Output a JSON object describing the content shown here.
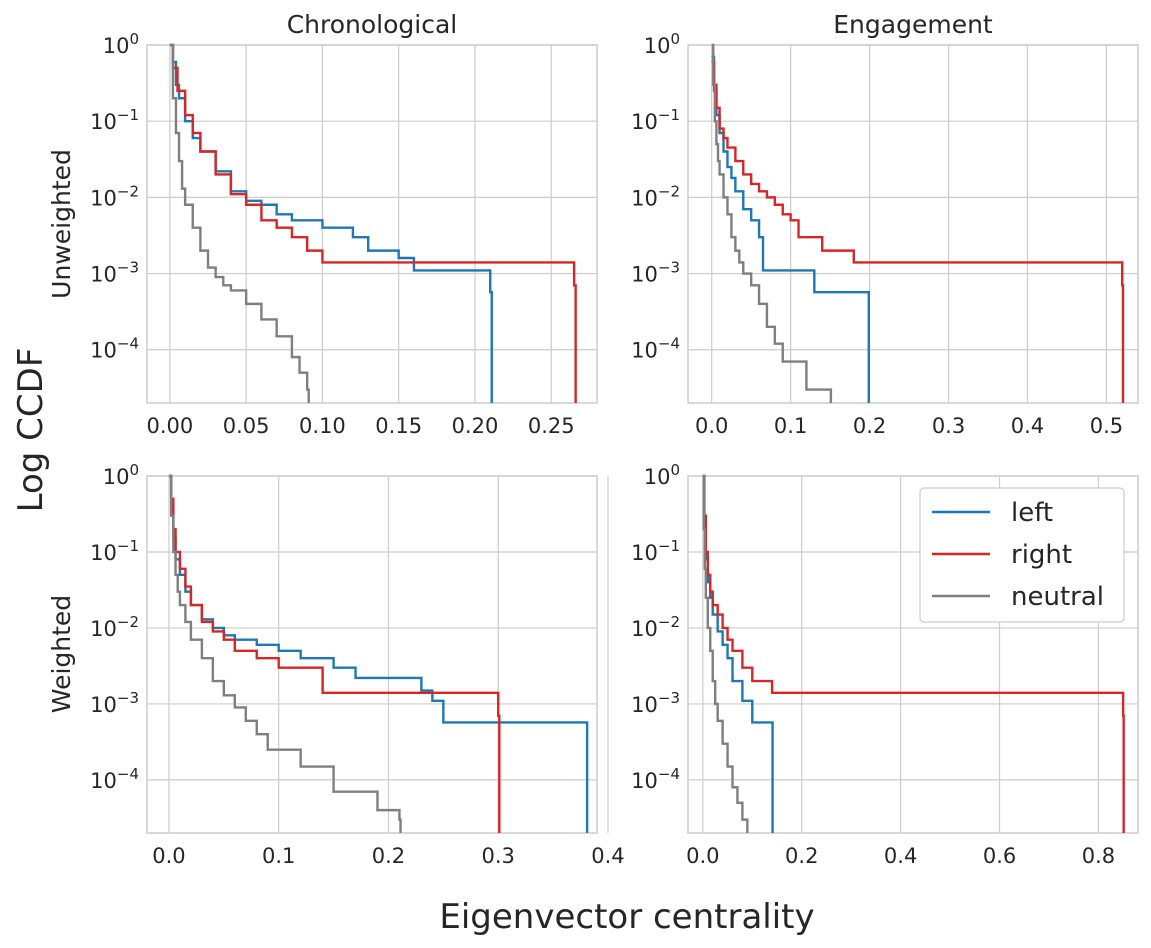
{
  "figure": {
    "ylabel": "Log CCDF",
    "xlabel": "Eigenvector centrality",
    "column_titles": [
      "Chronological",
      "Engagement"
    ],
    "row_labels": [
      "Unweighted",
      "Weighted"
    ],
    "legend": [
      {
        "label": "left",
        "color": "#1f77b4"
      },
      {
        "label": "right",
        "color": "#d62728"
      },
      {
        "label": "neutral",
        "color": "#7f7f7f"
      }
    ],
    "y_tick_labels": [
      {
        "base": "10",
        "exp": "0"
      },
      {
        "base": "10",
        "exp": "−1"
      },
      {
        "base": "10",
        "exp": "−2"
      },
      {
        "base": "10",
        "exp": "−3"
      },
      {
        "base": "10",
        "exp": "−4"
      }
    ]
  },
  "chart_data": [
    {
      "type": "line",
      "step": true,
      "yscale": "log",
      "row": "Unweighted",
      "column": "Chronological",
      "title": "Chronological",
      "xlim": [
        -0.015,
        0.28
      ],
      "ylim": [
        2e-05,
        1
      ],
      "xticks": [
        0,
        0.05,
        0.1,
        0.15,
        0.2,
        0.25
      ],
      "xtick_labels": [
        "0.00",
        "0.05",
        "0.10",
        "0.15",
        "0.20",
        "0.25"
      ],
      "series": [
        {
          "name": "left",
          "x": [
            0,
            0.002,
            0.004,
            0.006,
            0.01,
            0.015,
            0.02,
            0.03,
            0.04,
            0.05,
            0.06,
            0.07,
            0.08,
            0.1,
            0.12,
            0.13,
            0.15,
            0.16,
            0.21,
            0.211
          ],
          "y": [
            1,
            0.6,
            0.3,
            0.2,
            0.1,
            0.06,
            0.04,
            0.022,
            0.012,
            0.009,
            0.008,
            0.006,
            0.005,
            0.004,
            0.003,
            0.002,
            0.0016,
            0.0011,
            0.00057,
            2e-05
          ]
        },
        {
          "name": "right",
          "x": [
            0,
            0.002,
            0.005,
            0.01,
            0.015,
            0.02,
            0.03,
            0.04,
            0.05,
            0.06,
            0.07,
            0.08,
            0.09,
            0.1,
            0.265,
            0.266
          ],
          "y": [
            1,
            0.5,
            0.25,
            0.12,
            0.07,
            0.04,
            0.02,
            0.011,
            0.008,
            0.005,
            0.004,
            0.003,
            0.002,
            0.0014,
            0.0007,
            2e-05
          ]
        },
        {
          "name": "neutral",
          "x": [
            0,
            0.002,
            0.004,
            0.006,
            0.008,
            0.01,
            0.015,
            0.02,
            0.025,
            0.03,
            0.035,
            0.04,
            0.05,
            0.06,
            0.07,
            0.08,
            0.085,
            0.09,
            0.091
          ],
          "y": [
            1,
            0.2,
            0.07,
            0.03,
            0.013,
            0.008,
            0.004,
            0.002,
            0.0012,
            0.0009,
            0.0007,
            0.0006,
            0.0004,
            0.00025,
            0.00015,
            8e-05,
            5e-05,
            3e-05,
            2e-05
          ]
        }
      ]
    },
    {
      "type": "line",
      "step": true,
      "yscale": "log",
      "row": "Unweighted",
      "column": "Engagement",
      "title": "Engagement",
      "xlim": [
        -0.03,
        0.54
      ],
      "ylim": [
        2e-05,
        1
      ],
      "xticks": [
        0,
        0.1,
        0.2,
        0.3,
        0.4,
        0.5
      ],
      "xtick_labels": [
        "0.0",
        "0.1",
        "0.2",
        "0.3",
        "0.4",
        "0.5"
      ],
      "series": [
        {
          "name": "left",
          "x": [
            0,
            0.003,
            0.006,
            0.01,
            0.015,
            0.02,
            0.025,
            0.03,
            0.04,
            0.05,
            0.06,
            0.065,
            0.13,
            0.198,
            0.199
          ],
          "y": [
            0.7,
            0.25,
            0.12,
            0.07,
            0.04,
            0.025,
            0.018,
            0.012,
            0.007,
            0.005,
            0.003,
            0.0011,
            0.00057,
            0.00057,
            2e-05
          ]
        },
        {
          "name": "right",
          "x": [
            0,
            0.003,
            0.006,
            0.01,
            0.015,
            0.02,
            0.03,
            0.04,
            0.05,
            0.06,
            0.07,
            0.08,
            0.09,
            0.1,
            0.11,
            0.14,
            0.18,
            0.52,
            0.521
          ],
          "y": [
            0.6,
            0.3,
            0.15,
            0.08,
            0.06,
            0.045,
            0.03,
            0.02,
            0.015,
            0.012,
            0.01,
            0.008,
            0.006,
            0.005,
            0.003,
            0.002,
            0.0014,
            0.0007,
            2e-05
          ]
        },
        {
          "name": "neutral",
          "x": [
            0,
            0.002,
            0.004,
            0.006,
            0.008,
            0.01,
            0.015,
            0.02,
            0.025,
            0.03,
            0.035,
            0.04,
            0.05,
            0.06,
            0.07,
            0.08,
            0.09,
            0.12,
            0.15,
            0.151
          ],
          "y": [
            1,
            0.3,
            0.1,
            0.05,
            0.03,
            0.02,
            0.01,
            0.006,
            0.003,
            0.002,
            0.0014,
            0.001,
            0.0007,
            0.0004,
            0.0002,
            0.00012,
            7e-05,
            3e-05,
            3e-05,
            2e-05
          ]
        }
      ]
    },
    {
      "type": "line",
      "step": true,
      "yscale": "log",
      "row": "Weighted",
      "column": "Chronological",
      "title": "",
      "xlim": [
        -0.02,
        0.39
      ],
      "ylim": [
        2e-05,
        1
      ],
      "xticks": [
        0,
        0.1,
        0.2,
        0.3,
        0.4
      ],
      "xtick_labels": [
        "0.0",
        "0.1",
        "0.2",
        "0.3",
        "0.4"
      ],
      "series": [
        {
          "name": "left",
          "x": [
            0,
            0.002,
            0.004,
            0.006,
            0.01,
            0.015,
            0.02,
            0.03,
            0.04,
            0.05,
            0.06,
            0.08,
            0.1,
            0.12,
            0.15,
            0.17,
            0.23,
            0.24,
            0.25,
            0.38,
            0.381
          ],
          "y": [
            1,
            0.4,
            0.15,
            0.08,
            0.05,
            0.03,
            0.02,
            0.013,
            0.01,
            0.008,
            0.007,
            0.006,
            0.005,
            0.004,
            0.003,
            0.0022,
            0.0015,
            0.0011,
            0.00057,
            0.00057,
            2e-05
          ]
        },
        {
          "name": "right",
          "x": [
            0,
            0.002,
            0.004,
            0.006,
            0.01,
            0.015,
            0.02,
            0.03,
            0.04,
            0.05,
            0.06,
            0.08,
            0.1,
            0.14,
            0.3,
            0.301
          ],
          "y": [
            1,
            0.5,
            0.2,
            0.1,
            0.06,
            0.035,
            0.02,
            0.012,
            0.009,
            0.007,
            0.005,
            0.004,
            0.003,
            0.0014,
            0.0007,
            2e-05
          ]
        },
        {
          "name": "neutral",
          "x": [
            0,
            0.002,
            0.004,
            0.006,
            0.008,
            0.01,
            0.015,
            0.02,
            0.03,
            0.04,
            0.05,
            0.06,
            0.07,
            0.08,
            0.09,
            0.12,
            0.15,
            0.19,
            0.21,
            0.211
          ],
          "y": [
            1,
            0.3,
            0.1,
            0.05,
            0.03,
            0.02,
            0.012,
            0.007,
            0.004,
            0.002,
            0.0013,
            0.0009,
            0.0006,
            0.0004,
            0.00025,
            0.00015,
            7e-05,
            4e-05,
            3e-05,
            2e-05
          ]
        }
      ]
    },
    {
      "type": "line",
      "step": true,
      "yscale": "log",
      "row": "Weighted",
      "column": "Engagement",
      "title": "",
      "xlim": [
        -0.03,
        0.88
      ],
      "ylim": [
        2e-05,
        1
      ],
      "xticks": [
        0,
        0.2,
        0.4,
        0.6,
        0.8
      ],
      "xtick_labels": [
        "0.0",
        "0.2",
        "0.4",
        "0.6",
        "0.8"
      ],
      "series": [
        {
          "name": "left",
          "x": [
            0,
            0.003,
            0.006,
            0.01,
            0.015,
            0.02,
            0.03,
            0.04,
            0.05,
            0.06,
            0.08,
            0.1,
            0.14,
            0.141
          ],
          "y": [
            1,
            0.2,
            0.08,
            0.04,
            0.025,
            0.015,
            0.009,
            0.006,
            0.004,
            0.002,
            0.0011,
            0.00057,
            0.00057,
            2e-05
          ]
        },
        {
          "name": "right",
          "x": [
            0,
            0.003,
            0.006,
            0.01,
            0.015,
            0.02,
            0.03,
            0.04,
            0.05,
            0.06,
            0.08,
            0.1,
            0.14,
            0.85,
            0.851
          ],
          "y": [
            1,
            0.3,
            0.1,
            0.05,
            0.03,
            0.02,
            0.015,
            0.01,
            0.007,
            0.005,
            0.003,
            0.002,
            0.0014,
            0.0007,
            2e-05
          ]
        },
        {
          "name": "neutral",
          "x": [
            0,
            0.002,
            0.004,
            0.006,
            0.01,
            0.015,
            0.02,
            0.025,
            0.03,
            0.04,
            0.05,
            0.06,
            0.07,
            0.08,
            0.09,
            0.091
          ],
          "y": [
            1,
            0.2,
            0.06,
            0.025,
            0.01,
            0.005,
            0.002,
            0.001,
            0.0006,
            0.0003,
            0.00015,
            8e-05,
            5e-05,
            3e-05,
            2e-05,
            2e-05
          ]
        }
      ]
    }
  ]
}
